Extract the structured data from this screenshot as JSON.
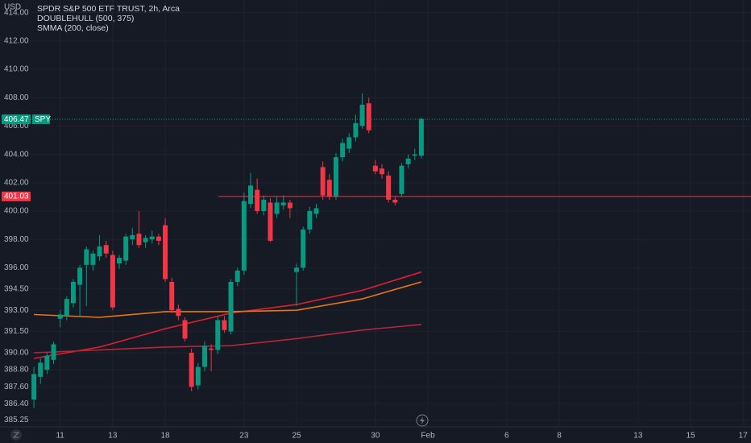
{
  "chart_data": {
    "type": "candlestick",
    "currency": "USD",
    "title": "SPDR S&P 500 ETF TRUST, 2h, Arca",
    "indicators": [
      "DOUBLEHULL (500, 375)",
      "SMMA (200, close)"
    ],
    "symbol": "SPY",
    "up_color": "#089981",
    "down_color": "#f23645",
    "last_price": 406.47,
    "cursor_price": 401.03,
    "cursor_color": "#f23645",
    "grid": true,
    "ylim": [
      384.77,
      414.89
    ],
    "yticks": [
      {
        "value": 385.25,
        "label": "385.25"
      },
      {
        "value": 386.4,
        "label": "386.40"
      },
      {
        "value": 387.6,
        "label": "387.60"
      },
      {
        "value": 388.8,
        "label": "388.80"
      },
      {
        "value": 390,
        "label": "390.00"
      },
      {
        "value": 391.5,
        "label": "391.50"
      },
      {
        "value": 393,
        "label": "393.00"
      },
      {
        "value": 394.5,
        "label": "394.50"
      },
      {
        "value": 396,
        "label": "396.00"
      },
      {
        "value": 398,
        "label": "398.00"
      },
      {
        "value": 400,
        "label": "400.00"
      },
      {
        "value": 402,
        "label": "402.00"
      },
      {
        "value": 404,
        "label": "404.00"
      },
      {
        "value": 406,
        "label": "406.00"
      },
      {
        "value": 408,
        "label": "408.00"
      },
      {
        "value": 410,
        "label": "410.00"
      },
      {
        "value": 412,
        "label": "412.00"
      },
      {
        "value": 414,
        "label": "414.00"
      }
    ],
    "xlim": [
      -0.5,
      109.2
    ],
    "xticks": [
      {
        "value": 4,
        "label": "11"
      },
      {
        "value": 12,
        "label": "13"
      },
      {
        "value": 20,
        "label": "18"
      },
      {
        "value": 32,
        "label": "23"
      },
      {
        "value": 40,
        "label": "25"
      },
      {
        "value": 52,
        "label": "30"
      },
      {
        "value": 60,
        "label": "Feb"
      },
      {
        "value": 72,
        "label": "6"
      },
      {
        "value": 80,
        "label": "8"
      },
      {
        "value": 92,
        "label": "13"
      },
      {
        "value": 100,
        "label": "15"
      },
      {
        "value": 108,
        "label": "17"
      }
    ],
    "x": [
      0,
      1,
      2,
      3,
      4,
      5,
      6,
      7,
      8,
      9,
      10,
      11,
      12,
      13,
      14,
      15,
      16,
      17,
      18,
      19,
      20,
      21,
      22,
      23,
      24,
      25,
      26,
      27,
      28,
      29,
      30,
      31,
      32,
      33,
      34,
      35,
      36,
      37,
      38,
      39,
      40,
      41,
      42,
      43,
      44,
      45,
      46,
      47,
      48,
      49,
      50,
      51,
      52,
      53,
      54,
      55,
      56,
      57,
      58,
      59
    ],
    "open": [
      386.7,
      388.3,
      388.8,
      389.5,
      392.4,
      392.6,
      393.5,
      394.8,
      396.2,
      396.2,
      396.8,
      397.6,
      396.9,
      396.3,
      396.5,
      398.0,
      398.4,
      397.8,
      398.0,
      398.2,
      399.0,
      395.0,
      393.1,
      392.3,
      390.0,
      387.7,
      389.0,
      390.3,
      390.2,
      392.3,
      391.5,
      395.0,
      395.8,
      400.5,
      401.5,
      400.0,
      400.6,
      399.8,
      400.4,
      400.6,
      395.7,
      396.0,
      398.7,
      399.8,
      403.1,
      402.2,
      401.0,
      403.8,
      404.4,
      405.2,
      406.0,
      407.6,
      403.2,
      403.0,
      402.5,
      400.8,
      401.2,
      403.3,
      403.9,
      403.9
    ],
    "high": [
      389.0,
      389.6,
      390.0,
      390.8,
      393.0,
      394.0,
      395.2,
      396.2,
      397.5,
      397.2,
      398.3,
      397.9,
      397.2,
      396.9,
      398.4,
      398.8,
      400.0,
      398.3,
      398.6,
      398.4,
      399.5,
      395.3,
      393.4,
      392.5,
      390.3,
      389.3,
      390.8,
      390.6,
      392.6,
      392.6,
      395.2,
      396.0,
      401.3,
      402.7,
      402.3,
      401.1,
      400.9,
      401.0,
      401.1,
      400.8,
      396.3,
      398.9,
      400.3,
      400.5,
      403.5,
      402.6,
      404.1,
      405.1,
      405.5,
      406.8,
      408.3,
      408.0,
      403.6,
      403.3,
      402.8,
      401.0,
      403.4,
      404.0,
      404.4,
      406.6
    ],
    "low": [
      386.1,
      387.8,
      388.5,
      389.2,
      391.8,
      392.3,
      393.2,
      392.5,
      393.3,
      395.8,
      396.5,
      396.7,
      393.0,
      395.9,
      396.2,
      397.6,
      397.4,
      397.4,
      397.7,
      397.6,
      395.0,
      392.8,
      392.3,
      390.8,
      387.3,
      387.4,
      388.7,
      388.7,
      389.9,
      391.4,
      391.3,
      394.7,
      395.5,
      400.2,
      399.8,
      399.7,
      397.8,
      399.5,
      400.1,
      399.5,
      393.3,
      395.8,
      398.4,
      399.5,
      400.8,
      400.8,
      400.8,
      403.5,
      404.1,
      404.9,
      405.8,
      405.5,
      402.6,
      402.3,
      400.6,
      400.4,
      401.0,
      403.0,
      403.6,
      403.7
    ],
    "close": [
      388.5,
      389.3,
      389.8,
      390.6,
      392.7,
      393.8,
      395.0,
      396.0,
      397.3,
      397.0,
      397.5,
      397.0,
      393.2,
      396.7,
      398.2,
      398.3,
      397.6,
      398.1,
      398.2,
      397.9,
      395.2,
      393.0,
      392.6,
      391.0,
      387.6,
      389.0,
      390.5,
      390.2,
      392.3,
      391.6,
      395.0,
      395.8,
      400.7,
      401.8,
      400.0,
      400.8,
      397.9,
      400.6,
      400.6,
      400.2,
      396.0,
      398.7,
      400.0,
      400.2,
      401.1,
      401.0,
      403.8,
      404.8,
      405.2,
      406.2,
      407.5,
      405.7,
      402.8,
      402.6,
      400.8,
      400.6,
      403.2,
      403.7,
      404.0,
      406.5
    ],
    "lines": [
      {
        "color": "#e0202f",
        "x": [
          0,
          10,
          20,
          30,
          40,
          50,
          59
        ],
        "values": [
          389.6,
          390.4,
          391.7,
          392.8,
          393.4,
          394.4,
          395.7
        ]
      },
      {
        "color": "#e8751a",
        "x": [
          0,
          10,
          20,
          30,
          40,
          50,
          59
        ],
        "values": [
          392.7,
          392.5,
          392.9,
          392.9,
          393.0,
          393.8,
          395.0
        ]
      },
      {
        "color": "#b2283a",
        "x": [
          0,
          10,
          20,
          30,
          40,
          50,
          59
        ],
        "values": [
          390.0,
          390.2,
          390.4,
          390.5,
          391.0,
          391.6,
          392.0
        ]
      }
    ]
  }
}
